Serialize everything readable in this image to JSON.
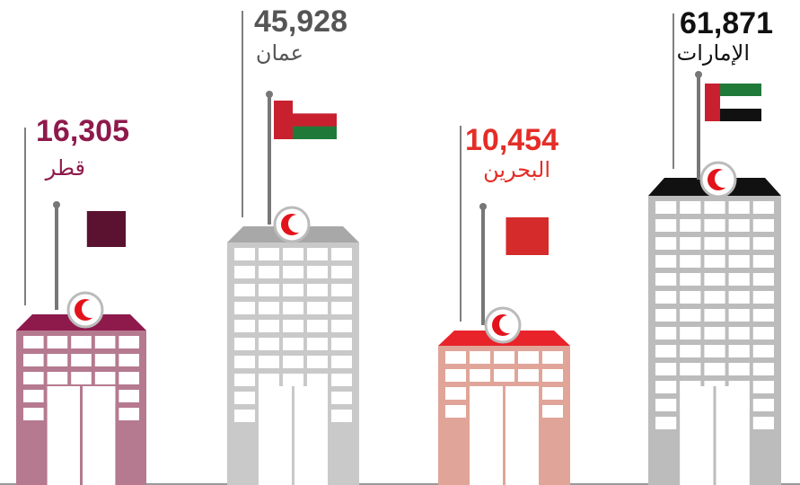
{
  "items": [
    {
      "value": "16,305",
      "name": "قطر"
    },
    {
      "value": "45,928",
      "name": "عمان"
    },
    {
      "value": "10,454",
      "name": "البحرين"
    },
    {
      "value": "61,871",
      "name": "الإمارات"
    }
  ]
}
